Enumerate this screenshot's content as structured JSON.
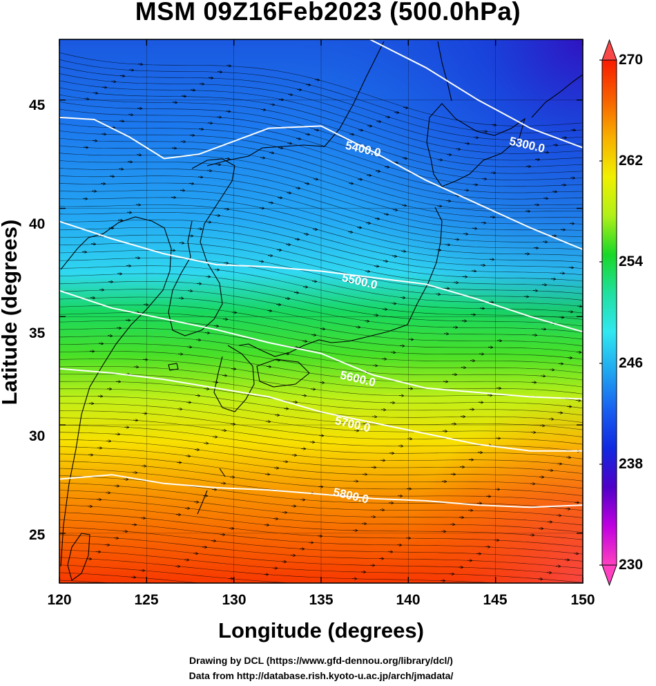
{
  "title": "MSM 09Z16Feb2023 (500.0hPa)",
  "xlabel": "Longitude (degrees)",
  "ylabel": "Latitude  (degrees)",
  "credits": [
    "Drawing by DCL (https://www.gfd-dennou.org/library/dcl/)",
    "Data from http://database.rish.kyoto-u.ac.jp/arch/jmadata/"
  ],
  "x_ticks": [
    "120",
    "125",
    "130",
    "135",
    "140",
    "145",
    "150"
  ],
  "y_ticks": [
    "45",
    "40",
    "35",
    "30",
    "25"
  ],
  "colorbar": {
    "ticks": [
      "270",
      "262",
      "254",
      "246",
      "238",
      "230"
    ],
    "min": 230,
    "max": 270,
    "colors": [
      "#ff40c0",
      "#c000e0",
      "#5000c8",
      "#1028e0",
      "#1860f0",
      "#20a8f0",
      "#30e8f0",
      "#20e0a0",
      "#18d828",
      "#b0f018",
      "#f0f000",
      "#f8b000",
      "#f86000",
      "#f81c00"
    ]
  },
  "chart_data": {
    "type": "map",
    "xlim": [
      120,
      150
    ],
    "ylim": [
      22.7,
      47.8
    ],
    "x_tick_values": [
      120,
      125,
      130,
      135,
      140,
      145,
      150
    ],
    "y_tick_values": [
      25,
      30,
      35,
      40,
      45
    ],
    "grid": true,
    "field": "temperature (K) shaded, geopotential height (m) contours, wind streamlines",
    "contours": [
      {
        "label": "5300.0",
        "value": 5300,
        "points": [
          [
            137.8,
            47.8
          ],
          [
            141,
            46.5
          ],
          [
            144,
            45
          ],
          [
            147,
            43.7
          ],
          [
            150,
            42.8
          ]
        ],
        "label_at": [
          146.8,
          42.9
        ]
      },
      {
        "label": "5400.0",
        "value": 5400,
        "points": [
          [
            120,
            44.2
          ],
          [
            122,
            44.1
          ],
          [
            124,
            43.3
          ],
          [
            126,
            42.3
          ],
          [
            128,
            42.5
          ],
          [
            130,
            43.1
          ],
          [
            132,
            43.7
          ],
          [
            135,
            43.8
          ],
          [
            138,
            42.6
          ],
          [
            141,
            41.3
          ],
          [
            144,
            40.2
          ],
          [
            147,
            39.1
          ],
          [
            150,
            38.1
          ]
        ],
        "label_at": [
          137.4,
          42.7
        ]
      },
      {
        "label": "5500.0",
        "value": 5500,
        "points": [
          [
            120,
            39.4
          ],
          [
            123,
            38.6
          ],
          [
            126,
            37.9
          ],
          [
            129,
            37.4
          ],
          [
            132,
            37.3
          ],
          [
            135,
            37.1
          ],
          [
            138,
            36.8
          ],
          [
            141,
            36.5
          ],
          [
            144,
            35.8
          ],
          [
            147,
            35.0
          ],
          [
            150,
            34.3
          ]
        ],
        "label_at": [
          137.2,
          36.6
        ]
      },
      {
        "label": "5600.0",
        "value": 5600,
        "points": [
          [
            120,
            36.2
          ],
          [
            123,
            35.4
          ],
          [
            126,
            34.9
          ],
          [
            129,
            34.4
          ],
          [
            132,
            33.8
          ],
          [
            135,
            33.3
          ],
          [
            138,
            32.3
          ],
          [
            141,
            31.7
          ],
          [
            144,
            31.5
          ],
          [
            147,
            31.3
          ],
          [
            150,
            31.2
          ]
        ],
        "label_at": [
          137.1,
          32.1
        ]
      },
      {
        "label": "5700.0",
        "value": 5700,
        "points": [
          [
            120,
            32.6
          ],
          [
            123,
            32.4
          ],
          [
            126,
            32.1
          ],
          [
            129,
            31.7
          ],
          [
            132,
            31.3
          ],
          [
            135,
            30.6
          ],
          [
            138,
            30.1
          ],
          [
            141,
            29.6
          ],
          [
            144,
            29.1
          ],
          [
            147,
            28.8
          ],
          [
            150,
            28.8
          ]
        ],
        "label_at": [
          136.8,
          30.0
        ]
      },
      {
        "label": "5800.0",
        "value": 5800,
        "points": [
          [
            120,
            27.5
          ],
          [
            123,
            27.7
          ],
          [
            126,
            27.3
          ],
          [
            129,
            27.1
          ],
          [
            132,
            27.0
          ],
          [
            135,
            26.8
          ],
          [
            138,
            26.6
          ],
          [
            141,
            26.5
          ],
          [
            144,
            26.3
          ],
          [
            147,
            26.2
          ],
          [
            150,
            26.3
          ]
        ],
        "label_at": [
          136.7,
          26.7
        ]
      }
    ]
  }
}
